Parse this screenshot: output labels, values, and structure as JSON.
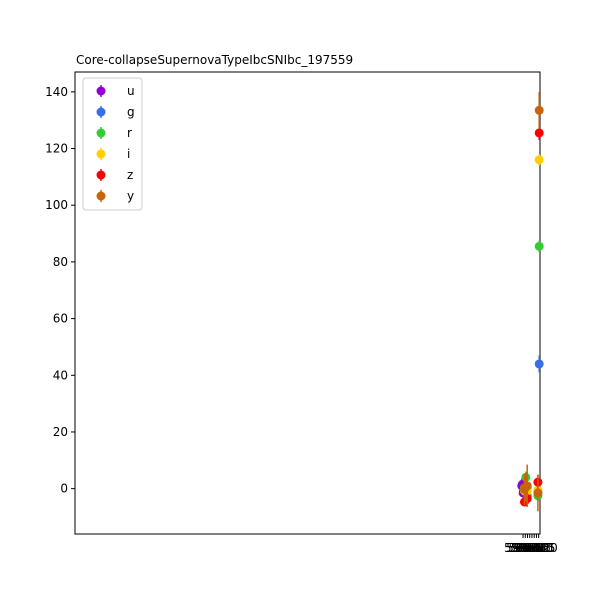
{
  "chart_data": {
    "type": "scatter",
    "title": "Core-collapseSupernovaTypeIbcSNIbc_197559",
    "xlabel": "",
    "ylabel": "",
    "xlim": [
      58581,
      59623
    ],
    "ylim": [
      -16,
      147
    ],
    "xticks": [
      "59585",
      "59590",
      "59595",
      "59600",
      "59605",
      "59610",
      "59615",
      "59620"
    ],
    "yticks": [
      "0",
      "20",
      "40",
      "60",
      "80",
      "100",
      "120",
      "140"
    ],
    "legend_position": "top-left",
    "grid": false,
    "series": [
      {
        "name": "u",
        "color": "#9400d3",
        "points": [
          [
            59582.2,
            1.0,
            2.5
          ],
          [
            59583.2,
            1.3,
            2.5
          ],
          [
            59584.2,
            1.6,
            2.3
          ],
          [
            59585.2,
            -1.5,
            2.5
          ],
          [
            59586.3,
            -0.8,
            2.8
          ]
        ]
      },
      {
        "name": "g",
        "color": "#3a6ee8",
        "points": [
          [
            59588.2,
            0.0,
            1.5
          ],
          [
            59591.2,
            -0.5,
            2.0
          ],
          [
            59594.3,
            -2.5,
            2.0
          ],
          [
            59618.3,
            -1.5,
            2.0
          ],
          [
            59621.2,
            44.0,
            3.0
          ]
        ]
      },
      {
        "name": "r",
        "color": "#32cd32",
        "points": [
          [
            59588.2,
            0.3,
            1.5
          ],
          [
            59591.2,
            4.0,
            2.0
          ],
          [
            59594.3,
            0.5,
            2.0
          ],
          [
            59618.3,
            -2.5,
            2.0
          ],
          [
            59621.2,
            85.5,
            2.0
          ]
        ]
      },
      {
        "name": "i",
        "color": "#ffd000",
        "points": [
          [
            59588.2,
            -0.7,
            1.5
          ],
          [
            59591.2,
            0.5,
            2.0
          ],
          [
            59594.3,
            -1.0,
            2.0
          ],
          [
            59618.3,
            -0.5,
            2.0
          ],
          [
            59621.2,
            116.0,
            2.0
          ]
        ]
      },
      {
        "name": "z",
        "color": "#ff0000",
        "points": [
          [
            59588.2,
            -4.7,
            1.5
          ],
          [
            59591.2,
            0.7,
            2.0
          ],
          [
            59594.3,
            -3.5,
            2.0
          ],
          [
            59618.3,
            2.3,
            2.5
          ],
          [
            59621.2,
            125.5,
            2.5
          ]
        ]
      },
      {
        "name": "y",
        "color": "#c8640a",
        "points": [
          [
            59588.2,
            -0.3,
            5.5
          ],
          [
            59591.2,
            0.5,
            5.0
          ],
          [
            59594.3,
            1.0,
            7.5
          ],
          [
            59618.3,
            -1.5,
            6.5
          ],
          [
            59621.2,
            133.5,
            6.5
          ]
        ]
      }
    ]
  }
}
